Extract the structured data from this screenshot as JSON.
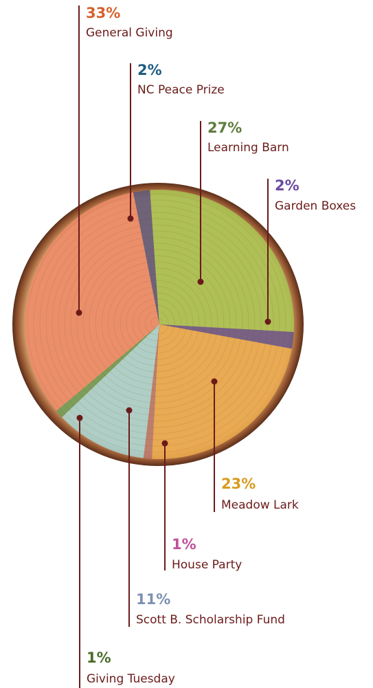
{
  "chart_data": {
    "type": "pie",
    "categories": [
      "General Giving",
      "NC Peace Prize",
      "Learning Barn",
      "Garden Boxes",
      "Meadow Lark",
      "House Party",
      "Scott B. Scholarship Fund",
      "Giving Tuesday"
    ],
    "values": [
      33,
      2,
      27,
      2,
      23,
      1,
      11,
      1
    ],
    "value_labels": [
      "33%",
      "2%",
      "27%",
      "2%",
      "23%",
      "1%",
      "11%",
      "1%"
    ],
    "colors": [
      "#ec8a66",
      "#5e5878",
      "#a9c251",
      "#6a5584",
      "#e9a84c",
      "#b8786a",
      "#a9d2cf",
      "#6f9a55"
    ],
    "label_colors": [
      "#d5612c",
      "#1d5c80",
      "#5e7c3e",
      "#6a4aa2",
      "#d89a1e",
      "#c0509a",
      "#7d90b2",
      "#4b6b2a"
    ]
  }
}
